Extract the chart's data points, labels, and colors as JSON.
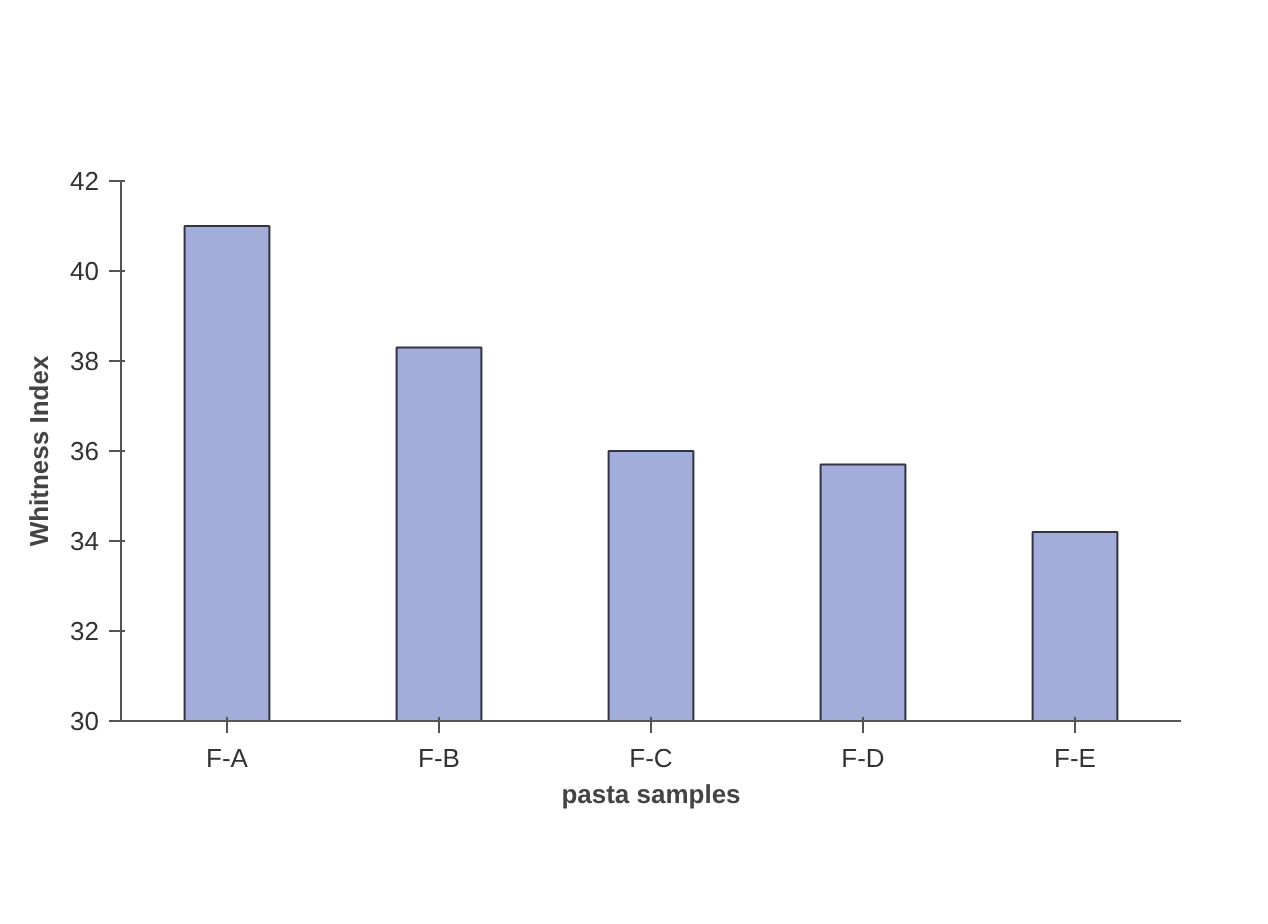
{
  "chart_data": {
    "type": "bar",
    "xlabel": "pasta samples",
    "ylabel": "Whitness Index",
    "categories": [
      "F-A",
      "F-B",
      "F-C",
      "F-D",
      "F-E"
    ],
    "values": [
      41.0,
      38.3,
      36.0,
      35.7,
      34.2
    ],
    "color": "#a3add9",
    "ylim": [
      30,
      42
    ],
    "yticks": [
      30,
      32,
      34,
      36,
      38,
      40,
      42
    ],
    "grid": false
  }
}
